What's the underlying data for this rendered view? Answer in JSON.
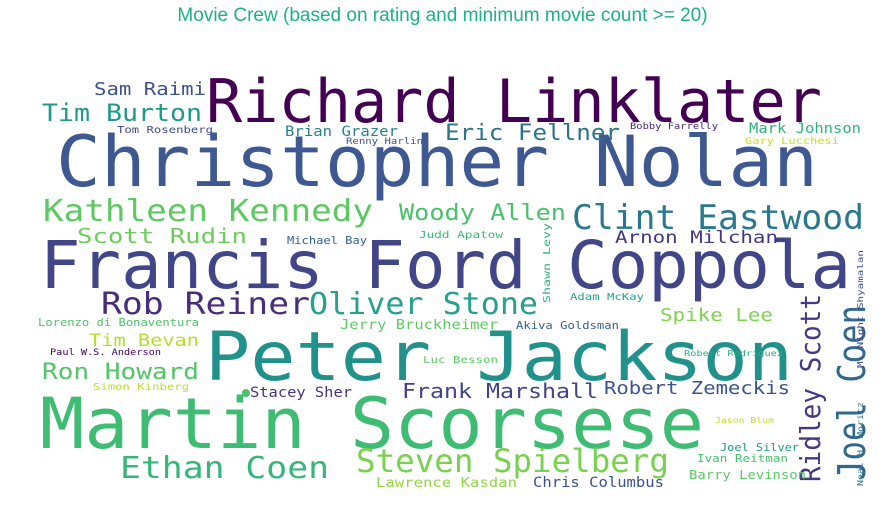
{
  "title": "Movie Crew (based on rating and minimum movie count >= 20)",
  "words": [
    {
      "text": "Christopher Nolan",
      "color": "#3e5991"
    },
    {
      "text": "Francis Ford Coppola",
      "color": "#404688"
    },
    {
      "text": "Martin Scorsese",
      "color": "#3fbc73"
    },
    {
      "text": "Peter Jackson",
      "color": "#21918c"
    },
    {
      "text": "Richard Linklater",
      "color": "#440154"
    },
    {
      "text": "Clint Eastwood",
      "color": "#2a788e"
    },
    {
      "text": "Steven Spielberg",
      "color": "#7ad151"
    },
    {
      "text": "Kathleen Kennedy",
      "color": "#5ec962"
    },
    {
      "text": "Oliver Stone",
      "color": "#25a18e"
    },
    {
      "text": "Rob Reiner",
      "color": "#472d7b"
    },
    {
      "text": "Ethan Coen",
      "color": "#35b779"
    },
    {
      "text": "Joel Coen",
      "color": "#31688e"
    },
    {
      "text": "Ridley Scott",
      "color": "#443a83"
    },
    {
      "text": "Tim Burton",
      "color": "#1f9a8a"
    },
    {
      "text": "Woody Allen",
      "color": "#4ac16d"
    },
    {
      "text": "Eric Fellner",
      "color": "#2c738e"
    },
    {
      "text": "Ron Howard",
      "color": "#52c569"
    },
    {
      "text": "Scott Rudin",
      "color": "#6ccd5a"
    },
    {
      "text": "Frank Marshall",
      "color": "#414487"
    },
    {
      "text": "Robert Zemeckis",
      "color": "#3a548c"
    },
    {
      "text": "Sam Raimi",
      "color": "#3b528b"
    },
    {
      "text": "Arnon Milchan",
      "color": "#453781"
    },
    {
      "text": "Spike Lee",
      "color": "#7fd34e"
    },
    {
      "text": "Tim Bevan",
      "color": "#b5de2b"
    },
    {
      "text": "Brian Grazer",
      "color": "#26828e"
    },
    {
      "text": "Mark Johnson",
      "color": "#2fb47c"
    },
    {
      "text": "Chris Columbus",
      "color": "#3b528b"
    },
    {
      "text": "Stacey Sher",
      "color": "#46337e"
    },
    {
      "text": "Jerry Bruckheimer",
      "color": "#5ec962"
    },
    {
      "text": "Lawrence Kasdan",
      "color": "#90d743"
    },
    {
      "text": "Barry Levinson",
      "color": "#5ac864"
    },
    {
      "text": "Akiva Goldsman",
      "color": "#33638d"
    },
    {
      "text": "Ivan Reitman",
      "color": "#48c16e"
    },
    {
      "text": "Joel Silver",
      "color": "#1e9c89"
    },
    {
      "text": "Michael Bay",
      "color": "#33638d"
    },
    {
      "text": "Lorenzo di Bonaventura",
      "color": "#4ec36b"
    },
    {
      "text": "Luc Besson",
      "color": "#5ec962"
    },
    {
      "text": "Adam McKay",
      "color": "#21a685"
    },
    {
      "text": "Judd Apatow",
      "color": "#37b878"
    },
    {
      "text": "Shawn Levy",
      "color": "#2fb47c"
    },
    {
      "text": "Simon Kinberg",
      "color": "#b8de29"
    },
    {
      "text": "Gary Lucchesi",
      "color": "#c8e020"
    },
    {
      "text": "Tom Rosenberg",
      "color": "#3d4d8a"
    },
    {
      "text": "Renny Harlin",
      "color": "#39558c"
    },
    {
      "text": "Bobby Farrelly",
      "color": "#482979"
    },
    {
      "text": "Paul W.S. Anderson",
      "color": "#440154"
    },
    {
      "text": "Robert Rodriguez",
      "color": "#2ab07f"
    },
    {
      "text": "Jason Blum",
      "color": "#bddf26"
    },
    {
      "text": "M. Night Shyamalan",
      "color": "#3e4a89"
    },
    {
      "text": "Neal H. Moritz",
      "color": "#2d708e"
    }
  ]
}
